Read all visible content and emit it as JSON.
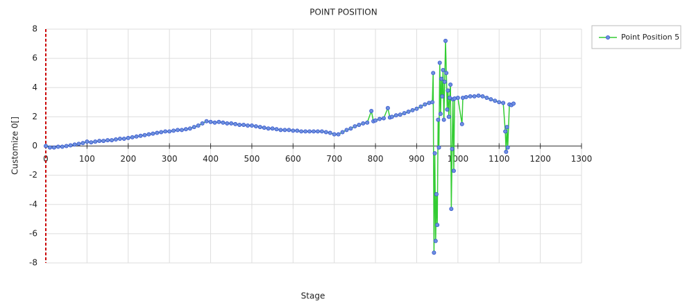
{
  "chart_data": {
    "type": "line",
    "title": "POINT POSITION",
    "x_label": "Stage",
    "y_label": "Customize 0[]",
    "x": [
      0,
      10,
      20,
      30,
      40,
      50,
      60,
      70,
      80,
      90,
      100,
      110,
      120,
      130,
      140,
      150,
      160,
      170,
      180,
      190,
      200,
      210,
      220,
      230,
      240,
      250,
      260,
      270,
      280,
      290,
      300,
      310,
      320,
      330,
      340,
      350,
      360,
      370,
      380,
      390,
      400,
      410,
      420,
      430,
      440,
      450,
      460,
      470,
      480,
      490,
      500,
      510,
      520,
      530,
      540,
      550,
      560,
      570,
      580,
      590,
      600,
      610,
      620,
      630,
      640,
      650,
      660,
      670,
      680,
      690,
      700,
      710,
      720,
      730,
      740,
      750,
      760,
      770,
      780,
      790,
      795,
      800,
      810,
      820,
      830,
      835,
      840,
      850,
      860,
      870,
      880,
      890,
      900,
      910,
      920,
      930,
      938,
      940,
      942,
      944,
      946,
      948,
      950,
      952,
      954,
      956,
      958,
      960,
      962,
      964,
      966,
      968,
      970,
      972,
      974,
      976,
      978,
      980,
      982,
      984,
      986,
      988,
      990,
      992,
      1000,
      1010,
      1012,
      1020,
      1030,
      1040,
      1050,
      1060,
      1070,
      1080,
      1090,
      1100,
      1110,
      1115,
      1117,
      1119,
      1121,
      1125,
      1130,
      1135
    ],
    "series": [
      {
        "name": "Point Position 5",
        "color": "#33cc33",
        "marker_color": "#6f8fe0",
        "values": [
          0,
          -0.1,
          -0.1,
          -0.05,
          -0.05,
          0,
          0.05,
          0.1,
          0.15,
          0.2,
          0.3,
          0.25,
          0.3,
          0.35,
          0.35,
          0.4,
          0.4,
          0.45,
          0.5,
          0.5,
          0.55,
          0.6,
          0.65,
          0.7,
          0.75,
          0.8,
          0.85,
          0.9,
          0.95,
          1.0,
          1.0,
          1.05,
          1.1,
          1.1,
          1.15,
          1.2,
          1.3,
          1.4,
          1.55,
          1.7,
          1.65,
          1.6,
          1.65,
          1.6,
          1.55,
          1.55,
          1.5,
          1.45,
          1.45,
          1.4,
          1.4,
          1.35,
          1.3,
          1.25,
          1.2,
          1.2,
          1.15,
          1.1,
          1.1,
          1.1,
          1.05,
          1.05,
          1.0,
          1.0,
          1.0,
          1.0,
          1.0,
          1.0,
          0.95,
          0.9,
          0.8,
          0.8,
          0.95,
          1.1,
          1.2,
          1.35,
          1.45,
          1.55,
          1.6,
          2.4,
          1.7,
          1.75,
          1.85,
          1.9,
          2.6,
          1.95,
          2.0,
          2.1,
          2.15,
          2.25,
          2.35,
          2.45,
          2.55,
          2.7,
          2.85,
          2.95,
          3.0,
          5.0,
          -7.3,
          -0.5,
          -6.5,
          -3.3,
          -5.4,
          1.8,
          -0.1,
          5.7,
          2.2,
          4.6,
          3.4,
          5.2,
          1.8,
          4.4,
          7.2,
          5.0,
          2.5,
          3.8,
          2.0,
          3.3,
          4.2,
          -4.3,
          -0.2,
          3.2,
          -1.7,
          3.25,
          3.3,
          1.5,
          3.3,
          3.35,
          3.4,
          3.4,
          3.45,
          3.4,
          3.3,
          3.2,
          3.1,
          3.0,
          2.95,
          1.0,
          -0.4,
          1.3,
          -0.1,
          2.85,
          2.8,
          2.9
        ]
      }
    ],
    "xlim": [
      0,
      1300
    ],
    "xticks": [
      0,
      100,
      200,
      300,
      400,
      500,
      600,
      700,
      800,
      900,
      1000,
      1100,
      1200,
      1300
    ],
    "ylim": [
      -8,
      8
    ],
    "yticks": [
      -8,
      -6,
      -4,
      -2,
      0,
      2,
      4,
      6,
      8
    ],
    "grid": true
  }
}
